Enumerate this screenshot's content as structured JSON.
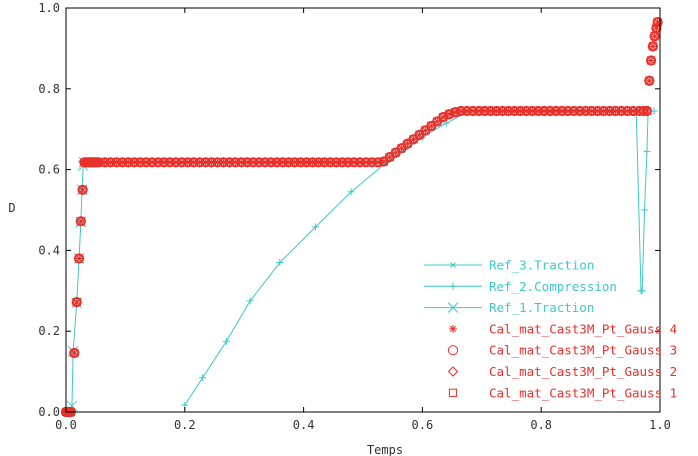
{
  "chart_data": {
    "type": "scatter",
    "xlabel": "Temps",
    "ylabel": "D",
    "xlim": [
      0,
      1
    ],
    "ylim": [
      0,
      1
    ],
    "x_ticks": [
      "0.0",
      "0.2",
      "0.4",
      "0.6",
      "0.8",
      "1.0"
    ],
    "y_ticks": [
      "0.0",
      "0.2",
      "0.4",
      "0.6",
      "0.8",
      "1.0"
    ],
    "legend_position": "bottom-right",
    "grid": false,
    "colors": {
      "reference": "#40c8c8",
      "calculated": "#e8302a",
      "frame": "#000000"
    },
    "series": [
      {
        "name": "Ref_3.Traction",
        "kind": "line",
        "marker": "x-small",
        "color": "#40c8c8",
        "points": [
          [
            0.0,
            0.0
          ],
          [
            0.005,
            0.0
          ],
          [
            0.008,
            0.003
          ],
          [
            0.01,
            0.005
          ]
        ]
      },
      {
        "name": "Ref_2.Compression",
        "kind": "line",
        "marker": "plus",
        "color": "#40c8c8",
        "points": [
          [
            0.2,
            0.017
          ],
          [
            0.23,
            0.085
          ],
          [
            0.27,
            0.175
          ],
          [
            0.31,
            0.275
          ],
          [
            0.36,
            0.37
          ],
          [
            0.42,
            0.458
          ],
          [
            0.48,
            0.545
          ],
          [
            0.54,
            0.618
          ],
          [
            0.57,
            0.65
          ],
          [
            0.6,
            0.68
          ],
          [
            0.64,
            0.715
          ],
          [
            0.68,
            0.745
          ],
          [
            0.96,
            0.746
          ],
          [
            0.968,
            0.3
          ],
          [
            0.97,
            0.3
          ],
          [
            0.974,
            0.5
          ],
          [
            0.978,
            0.645
          ],
          [
            0.98,
            0.745
          ],
          [
            0.99,
            0.745
          ]
        ]
      },
      {
        "name": "Ref_1.Traction",
        "kind": "line",
        "marker": "x-large",
        "color": "#40c8c8",
        "points": [
          [
            0.005,
            0.0
          ],
          [
            0.01,
            0.015
          ],
          [
            0.012,
            0.15
          ],
          [
            0.018,
            0.27
          ],
          [
            0.022,
            0.38
          ],
          [
            0.025,
            0.47
          ],
          [
            0.027,
            0.55
          ],
          [
            0.029,
            0.61
          ],
          [
            0.03,
            0.618
          ],
          [
            0.06,
            0.618
          ]
        ]
      },
      {
        "name": "Cal_mat_Cast3M_Pt_Gauss 4",
        "kind": "markers",
        "marker": "asterisk",
        "color": "#e8302a"
      },
      {
        "name": "Cal_mat_Cast3M_Pt_Gauss 3",
        "kind": "markers",
        "marker": "circle",
        "color": "#e8302a"
      },
      {
        "name": "Cal_mat_Cast3M_Pt_Gauss 2",
        "kind": "markers",
        "marker": "diamond",
        "color": "#e8302a"
      },
      {
        "name": "Cal_mat_Cast3M_Pt_Gauss 1",
        "kind": "markers",
        "marker": "square",
        "color": "#e8302a"
      }
    ],
    "calculated_points": [
      [
        0.0,
        0.0
      ],
      [
        0.002,
        0.0
      ],
      [
        0.004,
        0.0
      ],
      [
        0.006,
        0.0
      ],
      [
        0.008,
        0.0
      ],
      [
        0.014,
        0.146
      ],
      [
        0.018,
        0.272
      ],
      [
        0.022,
        0.38
      ],
      [
        0.025,
        0.472
      ],
      [
        0.028,
        0.55
      ],
      [
        0.031,
        0.618
      ],
      [
        0.034,
        0.618
      ],
      [
        0.037,
        0.618
      ],
      [
        0.04,
        0.618
      ],
      [
        0.043,
        0.618
      ],
      [
        0.046,
        0.618
      ],
      [
        0.049,
        0.618
      ],
      [
        0.052,
        0.618
      ],
      [
        0.055,
        0.618
      ],
      [
        0.065,
        0.618
      ],
      [
        0.075,
        0.618
      ],
      [
        0.085,
        0.618
      ],
      [
        0.095,
        0.618
      ],
      [
        0.105,
        0.618
      ],
      [
        0.115,
        0.618
      ],
      [
        0.125,
        0.618
      ],
      [
        0.135,
        0.618
      ],
      [
        0.145,
        0.618
      ],
      [
        0.155,
        0.618
      ],
      [
        0.165,
        0.618
      ],
      [
        0.175,
        0.618
      ],
      [
        0.185,
        0.618
      ],
      [
        0.195,
        0.618
      ],
      [
        0.205,
        0.618
      ],
      [
        0.215,
        0.618
      ],
      [
        0.225,
        0.618
      ],
      [
        0.235,
        0.618
      ],
      [
        0.245,
        0.618
      ],
      [
        0.255,
        0.618
      ],
      [
        0.265,
        0.618
      ],
      [
        0.275,
        0.618
      ],
      [
        0.285,
        0.618
      ],
      [
        0.295,
        0.618
      ],
      [
        0.305,
        0.618
      ],
      [
        0.315,
        0.618
      ],
      [
        0.325,
        0.618
      ],
      [
        0.335,
        0.618
      ],
      [
        0.345,
        0.618
      ],
      [
        0.355,
        0.618
      ],
      [
        0.365,
        0.618
      ],
      [
        0.375,
        0.618
      ],
      [
        0.385,
        0.618
      ],
      [
        0.395,
        0.618
      ],
      [
        0.405,
        0.618
      ],
      [
        0.415,
        0.618
      ],
      [
        0.425,
        0.618
      ],
      [
        0.435,
        0.618
      ],
      [
        0.445,
        0.618
      ],
      [
        0.455,
        0.618
      ],
      [
        0.465,
        0.618
      ],
      [
        0.475,
        0.618
      ],
      [
        0.485,
        0.618
      ],
      [
        0.495,
        0.618
      ],
      [
        0.505,
        0.618
      ],
      [
        0.515,
        0.618
      ],
      [
        0.525,
        0.618
      ],
      [
        0.535,
        0.62
      ],
      [
        0.545,
        0.631
      ],
      [
        0.555,
        0.642
      ],
      [
        0.565,
        0.653
      ],
      [
        0.575,
        0.664
      ],
      [
        0.585,
        0.675
      ],
      [
        0.595,
        0.686
      ],
      [
        0.605,
        0.697
      ],
      [
        0.615,
        0.708
      ],
      [
        0.625,
        0.719
      ],
      [
        0.635,
        0.73
      ],
      [
        0.645,
        0.737
      ],
      [
        0.655,
        0.742
      ],
      [
        0.665,
        0.745
      ],
      [
        0.675,
        0.745
      ],
      [
        0.685,
        0.745
      ],
      [
        0.695,
        0.745
      ],
      [
        0.705,
        0.745
      ],
      [
        0.715,
        0.745
      ],
      [
        0.725,
        0.745
      ],
      [
        0.735,
        0.745
      ],
      [
        0.745,
        0.745
      ],
      [
        0.755,
        0.745
      ],
      [
        0.765,
        0.745
      ],
      [
        0.775,
        0.745
      ],
      [
        0.785,
        0.745
      ],
      [
        0.795,
        0.745
      ],
      [
        0.805,
        0.745
      ],
      [
        0.815,
        0.745
      ],
      [
        0.825,
        0.745
      ],
      [
        0.835,
        0.745
      ],
      [
        0.845,
        0.745
      ],
      [
        0.855,
        0.745
      ],
      [
        0.865,
        0.745
      ],
      [
        0.875,
        0.745
      ],
      [
        0.885,
        0.745
      ],
      [
        0.895,
        0.745
      ],
      [
        0.905,
        0.745
      ],
      [
        0.915,
        0.745
      ],
      [
        0.925,
        0.745
      ],
      [
        0.935,
        0.745
      ],
      [
        0.945,
        0.745
      ],
      [
        0.955,
        0.745
      ],
      [
        0.965,
        0.745
      ],
      [
        0.972,
        0.745
      ],
      [
        0.978,
        0.745
      ],
      [
        0.982,
        0.82
      ],
      [
        0.985,
        0.87
      ],
      [
        0.988,
        0.905
      ],
      [
        0.991,
        0.93
      ],
      [
        0.994,
        0.95
      ],
      [
        0.996,
        0.965
      ]
    ]
  }
}
